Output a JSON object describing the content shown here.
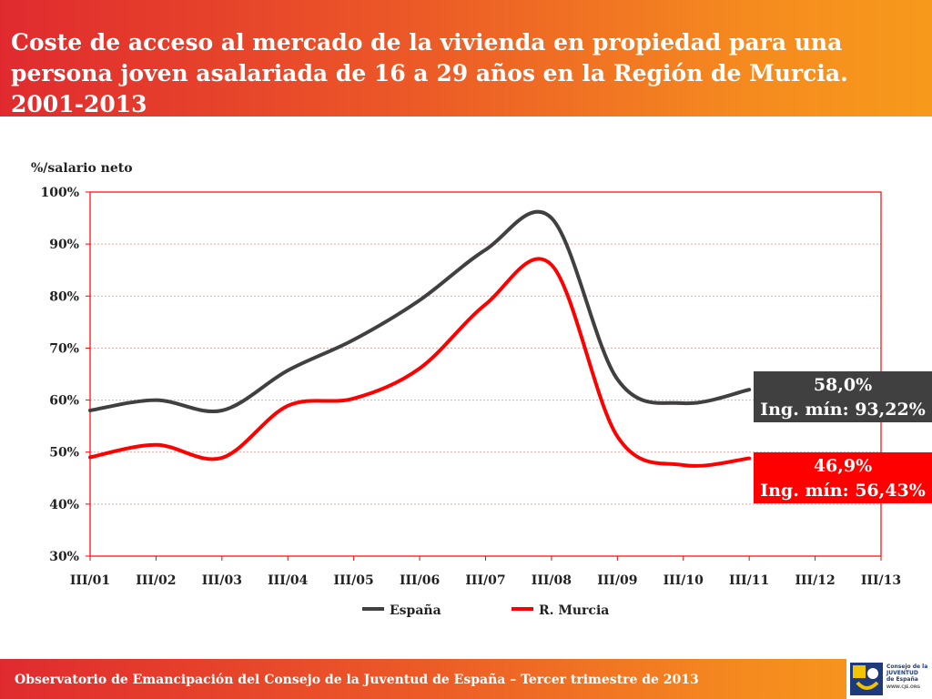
{
  "header": {
    "title": "Coste de acceso al mercado de la vivienda en propiedad para una persona joven asalariada de 16 a 29 años en la Región de Murcia. 2001-2013"
  },
  "chart_data": {
    "type": "line",
    "title": "Coste de acceso al mercado de la vivienda en propiedad para una persona joven asalariada de 16 a 29 años en la Región de Murcia. 2001-2013",
    "ylabel": "%/salario neto",
    "xlabel": "",
    "ylim": [
      30,
      100
    ],
    "yticks": [
      "100%",
      "90%",
      "80%",
      "70%",
      "60%",
      "50%",
      "40%",
      "30%"
    ],
    "ytick_values": [
      100,
      90,
      80,
      70,
      60,
      50,
      40,
      30
    ],
    "categories": [
      "III/01",
      "III/02",
      "III/03",
      "III/04",
      "III/05",
      "III/06",
      "III/07",
      "III/08",
      "III/09",
      "III/10",
      "III/11",
      "III/12",
      "III/13"
    ],
    "grid": true,
    "legend_position": "bottom",
    "series": [
      {
        "name": "España",
        "color": "#404040",
        "values": [
          58.0,
          60.0,
          58.0,
          65.7,
          71.6,
          79.2,
          88.9,
          95.0,
          64.0,
          59.4,
          62.0,
          null,
          null
        ]
      },
      {
        "name": "R. Murcia",
        "color": "#ff0000",
        "values": [
          49.0,
          51.4,
          48.9,
          58.9,
          60.3,
          66.1,
          78.4,
          86.0,
          53.0,
          47.5,
          48.8,
          null,
          null
        ]
      }
    ],
    "annotations": [
      {
        "series": "España",
        "value": "58,0%",
        "text": "Ing. mín: 93,22%",
        "color": "#404040"
      },
      {
        "series": "R. Murcia",
        "value": "46,9%",
        "text": "Ing. mín: 56,43%",
        "color": "#ff0000"
      }
    ]
  },
  "footer": {
    "text": "Observatorio de Emancipación del Consejo de la Juventud de España – Tercer trimestre de 2013",
    "logo_lines": [
      "Consejo de la",
      "JUVENTUD",
      "de España"
    ],
    "logo_url": "WWW.CJE.ORG"
  }
}
